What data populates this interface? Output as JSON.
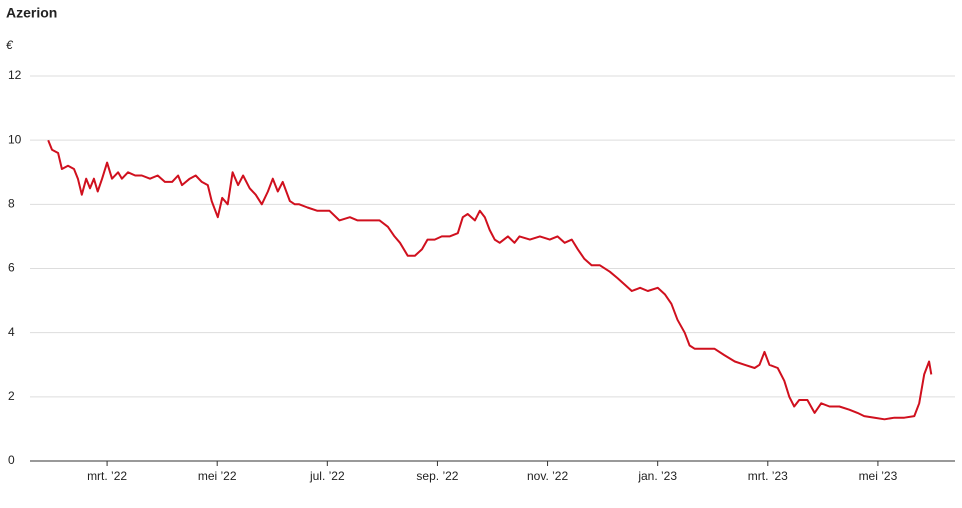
{
  "chart_data": {
    "type": "line",
    "title": "Azerion",
    "y_label": "€",
    "x": [
      0.93,
      1.0,
      1.11,
      1.18,
      1.29,
      1.4,
      1.47,
      1.54,
      1.62,
      1.69,
      1.76,
      1.83,
      1.91,
      2.0,
      2.09,
      2.2,
      2.27,
      2.38,
      2.51,
      2.63,
      2.78,
      2.92,
      3.05,
      3.18,
      3.29,
      3.36,
      3.5,
      3.61,
      3.72,
      3.83,
      3.9,
      4.01,
      4.09,
      4.19,
      4.28,
      4.38,
      4.47,
      4.59,
      4.7,
      4.81,
      4.92,
      5.01,
      5.1,
      5.19,
      5.32,
      5.41,
      5.49,
      5.64,
      5.82,
      6.04,
      6.22,
      6.41,
      6.55,
      6.68,
      6.81,
      6.95,
      7.1,
      7.22,
      7.32,
      7.46,
      7.59,
      7.72,
      7.82,
      7.95,
      8.08,
      8.22,
      8.37,
      8.46,
      8.55,
      8.68,
      8.77,
      8.86,
      8.95,
      9.04,
      9.13,
      9.28,
      9.4,
      9.49,
      9.68,
      9.86,
      10.04,
      10.18,
      10.31,
      10.44,
      10.55,
      10.67,
      10.8,
      10.95,
      11.13,
      11.27,
      11.4,
      11.53,
      11.68,
      11.82,
      12.0,
      12.13,
      12.25,
      12.36,
      12.49,
      12.58,
      12.67,
      12.85,
      13.03,
      13.21,
      13.4,
      13.58,
      13.76,
      13.85,
      13.94,
      14.03,
      14.18,
      14.3,
      14.39,
      14.48,
      14.57,
      14.72,
      14.85,
      14.97,
      15.12,
      15.3,
      15.48,
      15.63,
      15.75,
      15.94,
      16.12,
      16.3,
      16.48,
      16.66,
      16.75,
      16.84,
      16.93,
      16.97
    ],
    "series": [
      {
        "name": "Azerion",
        "color": "#d0101e",
        "values": [
          10.0,
          9.7,
          9.6,
          9.1,
          9.2,
          9.1,
          8.8,
          8.3,
          8.8,
          8.5,
          8.8,
          8.4,
          8.8,
          9.3,
          8.8,
          9.0,
          8.8,
          9.0,
          8.9,
          8.9,
          8.8,
          8.9,
          8.7,
          8.7,
          8.9,
          8.6,
          8.8,
          8.9,
          8.7,
          8.6,
          8.1,
          7.6,
          8.2,
          8.0,
          9.0,
          8.6,
          8.9,
          8.5,
          8.3,
          8.0,
          8.4,
          8.8,
          8.4,
          8.7,
          8.1,
          8.0,
          8.0,
          7.9,
          7.8,
          7.8,
          7.5,
          7.6,
          7.5,
          7.5,
          7.5,
          7.5,
          7.3,
          7.0,
          6.8,
          6.4,
          6.4,
          6.6,
          6.9,
          6.9,
          7.0,
          7.0,
          7.1,
          7.6,
          7.7,
          7.5,
          7.8,
          7.6,
          7.2,
          6.9,
          6.8,
          7.0,
          6.8,
          7.0,
          6.9,
          7.0,
          6.9,
          7.0,
          6.8,
          6.9,
          6.6,
          6.3,
          6.1,
          6.1,
          5.9,
          5.7,
          5.5,
          5.3,
          5.4,
          5.3,
          5.4,
          5.2,
          4.9,
          4.4,
          4.0,
          3.6,
          3.5,
          3.5,
          3.5,
          3.3,
          3.1,
          3.0,
          2.9,
          3.0,
          3.4,
          3.0,
          2.9,
          2.5,
          2.0,
          1.7,
          1.9,
          1.9,
          1.5,
          1.8,
          1.7,
          1.7,
          1.6,
          1.5,
          1.4,
          1.35,
          1.3,
          1.35,
          1.35,
          1.4,
          1.8,
          2.7,
          3.1,
          2.7
        ]
      }
    ],
    "xlim": [
      0.6,
      17.4
    ],
    "xticks": [
      {
        "value": 2,
        "label": "mrt. ’22"
      },
      {
        "value": 4,
        "label": "mei ’22"
      },
      {
        "value": 6,
        "label": "jul. ’22"
      },
      {
        "value": 8,
        "label": "sep. ’22"
      },
      {
        "value": 10,
        "label": "nov. ’22"
      },
      {
        "value": 12,
        "label": "jan. ’23"
      },
      {
        "value": 14,
        "label": "mrt. ’23"
      },
      {
        "value": 16,
        "label": "mei ’23"
      }
    ],
    "ylim": [
      0,
      12
    ],
    "yticks": [
      0,
      2,
      4,
      6,
      8,
      10,
      12
    ],
    "grid": true
  }
}
